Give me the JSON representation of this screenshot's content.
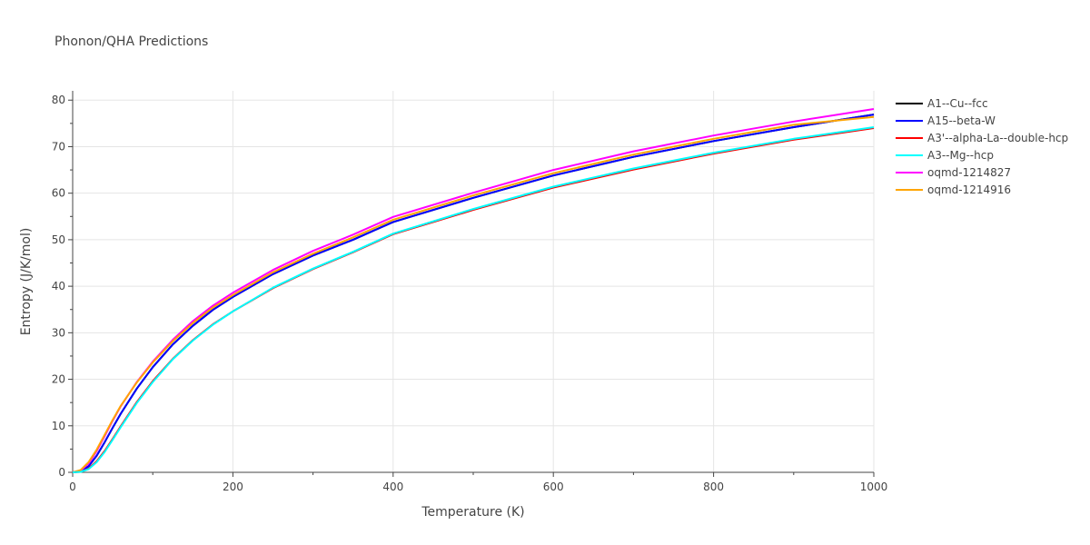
{
  "chart_data": {
    "type": "line",
    "title": "Phonon/QHA Predictions",
    "xlabel": "Temperature (K)",
    "ylabel": "Entropy (J/K/mol)",
    "xlim": [
      0,
      1000
    ],
    "ylim": [
      0,
      82
    ],
    "xticks": [
      0,
      200,
      400,
      600,
      800,
      1000
    ],
    "yticks": [
      0,
      10,
      20,
      30,
      40,
      50,
      60,
      70,
      80
    ],
    "grid": true,
    "legend_position": "right",
    "x": [
      0,
      10,
      20,
      30,
      40,
      50,
      60,
      80,
      100,
      125,
      150,
      175,
      200,
      250,
      300,
      350,
      400,
      500,
      600,
      700,
      800,
      900,
      1000
    ],
    "series": [
      {
        "name": "A1--Cu--fcc",
        "color": "#000000",
        "values": [
          0,
          0.2,
          1.3,
          3.6,
          6.5,
          9.6,
          12.6,
          18.0,
          22.6,
          27.5,
          31.5,
          34.9,
          37.7,
          42.6,
          46.6,
          50.0,
          53.8,
          59.0,
          63.8,
          67.8,
          71.2,
          74.2,
          76.9
        ]
      },
      {
        "name": "A15--beta-W",
        "color": "#0000ff",
        "values": [
          0,
          0.2,
          1.3,
          3.6,
          6.5,
          9.6,
          12.6,
          18.0,
          22.6,
          27.5,
          31.5,
          34.9,
          37.7,
          42.6,
          46.6,
          50.0,
          53.8,
          59.0,
          63.8,
          67.8,
          71.2,
          74.2,
          76.9
        ]
      },
      {
        "name": "A3'--alpha-La--double-hcp",
        "color": "#ff0000",
        "values": [
          0,
          0.1,
          0.8,
          2.4,
          4.6,
          7.2,
          9.9,
          15.1,
          19.6,
          24.4,
          28.4,
          31.8,
          34.6,
          39.6,
          43.7,
          47.3,
          51.2,
          56.4,
          61.2,
          65.1,
          68.5,
          71.5,
          74.0
        ]
      },
      {
        "name": "A3--Mg--hcp",
        "color": "#00ffff",
        "values": [
          0,
          0.1,
          0.7,
          2.2,
          4.4,
          7.0,
          9.7,
          14.9,
          19.4,
          24.3,
          28.3,
          31.7,
          34.6,
          39.7,
          43.8,
          47.4,
          51.3,
          56.6,
          61.4,
          65.3,
          68.7,
          71.7,
          74.2
        ]
      },
      {
        "name": "oqmd-1214827",
        "color": "#ff00ff",
        "values": [
          0,
          0.4,
          1.9,
          4.6,
          7.8,
          11.1,
          14.2,
          19.4,
          23.8,
          28.5,
          32.5,
          35.8,
          38.6,
          43.5,
          47.6,
          51.1,
          54.9,
          60.1,
          65.0,
          69.0,
          72.4,
          75.4,
          78.1
        ]
      },
      {
        "name": "oqmd-1214916",
        "color": "#ffa500",
        "values": [
          0,
          0.5,
          2.2,
          4.9,
          8.1,
          11.3,
          14.3,
          19.3,
          23.6,
          28.2,
          32.1,
          35.4,
          38.1,
          43.0,
          47.0,
          50.5,
          54.3,
          59.5,
          64.3,
          68.3,
          71.7,
          74.7,
          76.4
        ]
      }
    ]
  }
}
